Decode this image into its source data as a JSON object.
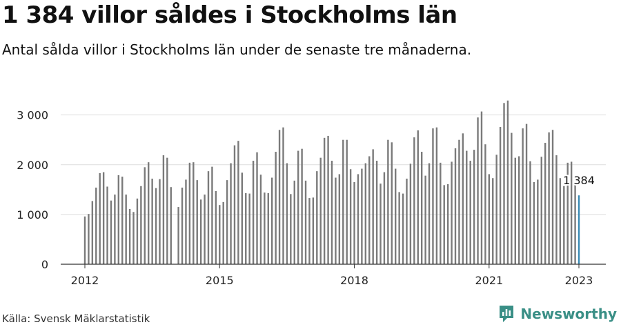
{
  "header": {
    "title": "1 384 villor såldes i Stockholms län",
    "subtitle": "Antal sålda villor i Stockholms län under de senaste tre månaderna."
  },
  "footer": {
    "source": "Källa: Svensk Mäklarstatistik",
    "brand": "Newsworthy",
    "brand_icon": "newsworthy-logo-icon"
  },
  "colors": {
    "bar": "#7a7a7a",
    "highlight": "#3a8ab3",
    "grid": "#dddddd",
    "axis": "#333333",
    "brand": "#3a8f86"
  },
  "chart_data": {
    "type": "bar",
    "title": "1 384 villor såldes i Stockholms län",
    "xlabel": "",
    "ylabel": "",
    "ylim": [
      0,
      3300
    ],
    "yticks": [
      0,
      1000,
      2000,
      3000
    ],
    "ytick_labels": [
      "0",
      "1 000",
      "2 000",
      "3 000"
    ],
    "xticks": [
      "2012",
      "2015",
      "2018",
      "2021",
      "2023"
    ],
    "x_start": "2012-01",
    "grid": true,
    "legend": "none",
    "annotation": {
      "label": "1 384",
      "target": "last"
    },
    "values": [
      960,
      1010,
      1270,
      1540,
      1830,
      1850,
      1560,
      1280,
      1400,
      1790,
      1760,
      1400,
      1110,
      1050,
      1320,
      1570,
      1950,
      2050,
      1720,
      1530,
      1710,
      2190,
      2140,
      1550,
      null,
      1150,
      1540,
      1700,
      2040,
      2050,
      1690,
      1300,
      1400,
      1870,
      1960,
      1470,
      1190,
      1250,
      1690,
      2030,
      2390,
      2480,
      1840,
      1430,
      1420,
      2080,
      2250,
      1800,
      1440,
      1430,
      1740,
      2260,
      2700,
      2750,
      2030,
      1410,
      1680,
      2280,
      2320,
      1680,
      1330,
      1340,
      1870,
      2140,
      2540,
      2580,
      2080,
      1740,
      1810,
      2500,
      2500,
      1910,
      1650,
      1810,
      1920,
      2030,
      2170,
      2310,
      2080,
      1620,
      1850,
      2500,
      2450,
      1920,
      1450,
      1420,
      1720,
      2020,
      2550,
      2690,
      2260,
      1780,
      2030,
      2730,
      2750,
      2040,
      1590,
      1610,
      2060,
      2330,
      2500,
      2630,
      2280,
      2080,
      2300,
      2950,
      3070,
      2410,
      1810,
      1730,
      2200,
      2760,
      3240,
      3290,
      2640,
      2140,
      2170,
      2730,
      2820,
      2070,
      1650,
      1700,
      2160,
      2440,
      2650,
      2700,
      2190,
      1730,
      1570,
      2040,
      2060,
      1590,
      1384
    ]
  }
}
